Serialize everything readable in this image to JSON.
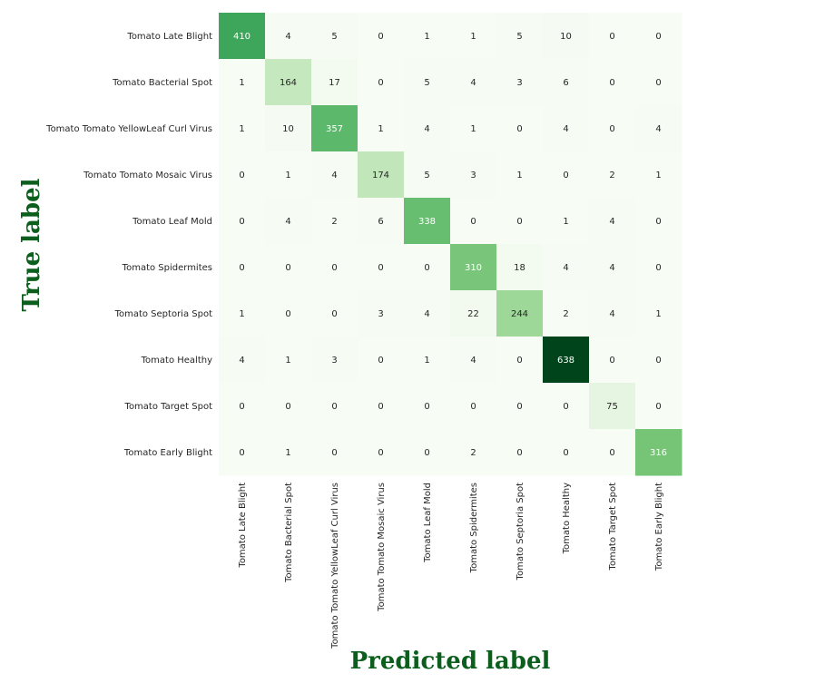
{
  "chart_data": {
    "type": "heatmap",
    "xlabel": "Predicted label",
    "ylabel": "True label",
    "row_labels": [
      "Tomato Late Blight",
      "Tomato Bacterial Spot",
      "Tomato Tomato YellowLeaf Curl Virus",
      "Tomato Tomato Mosaic Virus",
      "Tomato Leaf Mold",
      "Tomato Spidermites",
      "Tomato Septoria Spot",
      "Tomato Healthy",
      "Tomato Target Spot",
      "Tomato Early Blight"
    ],
    "col_labels": [
      "Tomato Late Blight",
      "Tomato Bacterial Spot",
      "Tomato Tomato YellowLeaf Curl Virus",
      "Tomato Tomato Mosaic Virus",
      "Tomato Leaf Mold",
      "Tomato Spidermites",
      "Tomato Septoria Spot",
      "Tomato Healthy",
      "Tomato Target Spot",
      "Tomato Early Blight"
    ],
    "values": [
      [
        410,
        4,
        5,
        0,
        1,
        1,
        5,
        10,
        0,
        0
      ],
      [
        1,
        164,
        17,
        0,
        5,
        4,
        3,
        6,
        0,
        0
      ],
      [
        1,
        10,
        357,
        1,
        4,
        1,
        0,
        4,
        0,
        4
      ],
      [
        0,
        1,
        4,
        174,
        5,
        3,
        1,
        0,
        2,
        1
      ],
      [
        0,
        4,
        2,
        6,
        338,
        0,
        0,
        1,
        4,
        0
      ],
      [
        0,
        0,
        0,
        0,
        0,
        310,
        18,
        4,
        4,
        0
      ],
      [
        1,
        0,
        0,
        3,
        4,
        22,
        244,
        2,
        4,
        1
      ],
      [
        4,
        1,
        3,
        0,
        1,
        4,
        0,
        638,
        0,
        0
      ],
      [
        0,
        0,
        0,
        0,
        0,
        0,
        0,
        0,
        75,
        0
      ],
      [
        0,
        1,
        0,
        0,
        0,
        2,
        0,
        0,
        0,
        316
      ]
    ],
    "colormap": "Greens",
    "colorbar": false,
    "grid": false
  }
}
